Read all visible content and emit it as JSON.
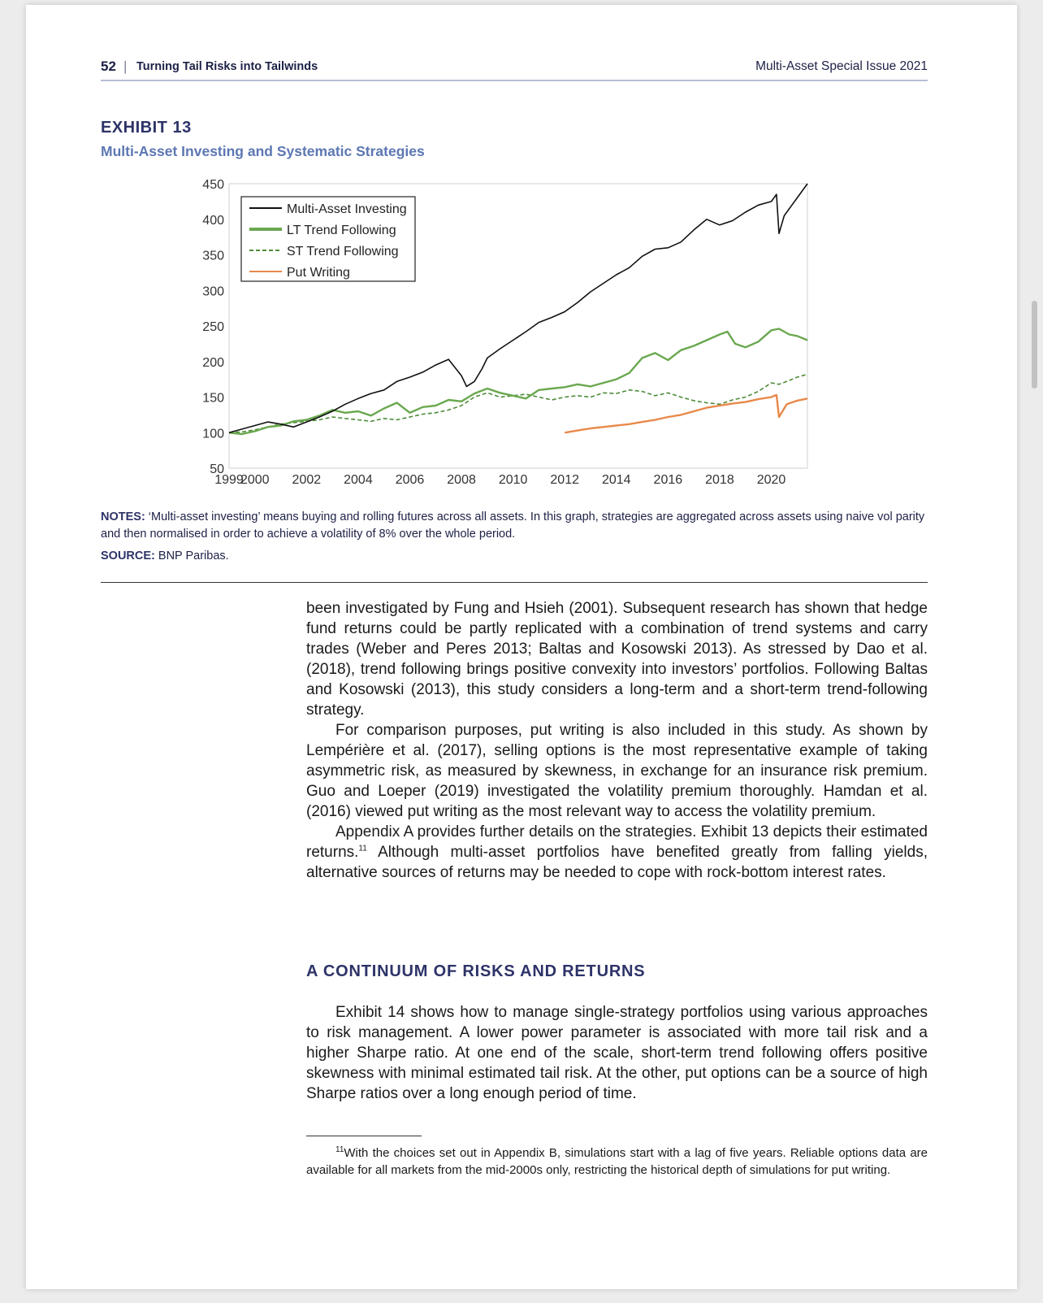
{
  "header": {
    "page_number": "52",
    "separator": "|",
    "article_title": "Turning Tail Risks into Tailwinds",
    "issue": "Multi-Asset Special Issue 2021"
  },
  "exhibit": {
    "label": "EXHIBIT 13",
    "title": "Multi-Asset Investing and Systematic Strategies",
    "notes_label": "NOTES:",
    "notes_text": " ‘Multi-asset investing’ means buying and rolling futures across all assets. In this graph, strategies are aggregated across assets using naive vol parity and then normalised in order to achieve a volatility of 8% over the whole period.",
    "source_label": "SOURCE:",
    "source_text": " BNP Paribas."
  },
  "chart_data": {
    "type": "line",
    "xlim": [
      1999,
      2021.4
    ],
    "ylim": [
      50,
      450
    ],
    "x_ticks": [
      "1999",
      "2000",
      "2002",
      "2004",
      "2006",
      "2008",
      "2010",
      "2012",
      "2014",
      "2016",
      "2018",
      "2020"
    ],
    "y_ticks": [
      "450",
      "400",
      "350",
      "300",
      "250",
      "200",
      "150",
      "100",
      "50"
    ],
    "legend_position": "top-left",
    "grid": false,
    "series": [
      {
        "name": "Multi-Asset Investing",
        "color": "#111111",
        "style": "solid",
        "x": [
          1999.0,
          1999.5,
          2000.0,
          2000.5,
          2001.0,
          2001.5,
          2002.0,
          2002.5,
          2003.0,
          2003.5,
          2004.0,
          2004.5,
          2005.0,
          2005.5,
          2006.0,
          2006.5,
          2007.0,
          2007.5,
          2008.0,
          2008.2,
          2008.5,
          2008.8,
          2009.0,
          2009.5,
          2010.0,
          2010.5,
          2011.0,
          2011.5,
          2012.0,
          2012.5,
          2013.0,
          2013.5,
          2014.0,
          2014.5,
          2015.0,
          2015.5,
          2016.0,
          2016.5,
          2017.0,
          2017.5,
          2018.0,
          2018.5,
          2019.0,
          2019.5,
          2020.0,
          2020.2,
          2020.3,
          2020.5,
          2020.8,
          2021.0,
          2021.4
        ],
        "values": [
          100,
          105,
          110,
          115,
          112,
          108,
          115,
          122,
          130,
          140,
          148,
          155,
          160,
          172,
          178,
          185,
          195,
          203,
          180,
          165,
          172,
          190,
          205,
          218,
          230,
          242,
          255,
          262,
          270,
          283,
          298,
          310,
          322,
          332,
          348,
          358,
          360,
          368,
          385,
          400,
          392,
          398,
          410,
          420,
          425,
          435,
          380,
          405,
          420,
          430,
          450
        ]
      },
      {
        "name": "LT Trend Following",
        "color": "#6aa84f",
        "style": "solid",
        "x": [
          1999.0,
          1999.5,
          2000.0,
          2000.5,
          2001.0,
          2001.5,
          2002.0,
          2002.5,
          2003.0,
          2003.5,
          2004.0,
          2004.5,
          2005.0,
          2005.5,
          2006.0,
          2006.5,
          2007.0,
          2007.5,
          2008.0,
          2008.5,
          2009.0,
          2009.5,
          2010.0,
          2010.5,
          2011.0,
          2011.5,
          2012.0,
          2012.5,
          2013.0,
          2013.5,
          2014.0,
          2014.5,
          2015.0,
          2015.5,
          2016.0,
          2016.5,
          2017.0,
          2017.5,
          2018.0,
          2018.3,
          2018.6,
          2019.0,
          2019.5,
          2020.0,
          2020.3,
          2020.7,
          2021.0,
          2021.4
        ],
        "values": [
          100,
          98,
          102,
          108,
          110,
          116,
          118,
          124,
          132,
          128,
          130,
          124,
          134,
          142,
          128,
          136,
          138,
          146,
          144,
          155,
          162,
          156,
          152,
          148,
          160,
          162,
          164,
          168,
          165,
          170,
          175,
          184,
          205,
          212,
          202,
          216,
          222,
          230,
          238,
          242,
          225,
          220,
          228,
          244,
          246,
          238,
          236,
          230
        ]
      },
      {
        "name": "ST Trend Following",
        "color": "#4e8c3a",
        "style": "dashed",
        "x": [
          1999.0,
          1999.5,
          2000.0,
          2000.5,
          2001.0,
          2001.5,
          2002.0,
          2002.5,
          2003.0,
          2003.5,
          2004.0,
          2004.5,
          2005.0,
          2005.5,
          2006.0,
          2006.5,
          2007.0,
          2007.5,
          2008.0,
          2008.5,
          2009.0,
          2009.5,
          2010.0,
          2010.5,
          2011.0,
          2011.5,
          2012.0,
          2012.5,
          2013.0,
          2013.5,
          2014.0,
          2014.5,
          2015.0,
          2015.5,
          2016.0,
          2016.5,
          2017.0,
          2017.5,
          2018.0,
          2018.5,
          2019.0,
          2019.5,
          2020.0,
          2020.3,
          2020.6,
          2021.0,
          2021.4
        ],
        "values": [
          100,
          101,
          104,
          108,
          112,
          114,
          116,
          118,
          122,
          120,
          118,
          116,
          120,
          118,
          122,
          126,
          128,
          132,
          138,
          150,
          156,
          150,
          152,
          154,
          150,
          146,
          150,
          152,
          150,
          156,
          155,
          160,
          158,
          152,
          156,
          150,
          145,
          142,
          140,
          146,
          150,
          158,
          170,
          168,
          172,
          178,
          182
        ]
      },
      {
        "name": "Put Writing",
        "color": "#e8894a",
        "style": "solid",
        "x": [
          2012.0,
          2012.5,
          2013.0,
          2013.5,
          2014.0,
          2014.5,
          2015.0,
          2015.5,
          2016.0,
          2016.5,
          2017.0,
          2017.5,
          2018.0,
          2018.5,
          2019.0,
          2019.5,
          2020.0,
          2020.2,
          2020.3,
          2020.6,
          2021.0,
          2021.4
        ],
        "values": [
          100,
          103,
          106,
          108,
          110,
          112,
          115,
          118,
          122,
          125,
          130,
          135,
          138,
          141,
          143,
          147,
          150,
          153,
          122,
          140,
          145,
          148
        ]
      }
    ]
  },
  "body": {
    "p1": "been investigated by Fung and Hsieh (2001). Subsequent research has shown that hedge fund returns could be partly replicated with a combination of trend systems and carry trades (Weber and Peres 2013; Baltas and Kosowski 2013). As stressed by Dao et al. (2018), trend following brings positive convexity into investors’ portfolios. Following Baltas and Kosowski (2013), this study considers a long-term and a short-term trend-following strategy.",
    "p2": "For comparison purposes, put writing is also included in this study. As shown by Lempérière et al. (2017), selling options is the most representative example of taking asymmetric risk, as measured by skewness, in exchange for an insurance risk premium. Guo and Loeper (2019) investigated the volatility premium thoroughly. Hamdan et al. (2016) viewed put writing as the most relevant way to access the volatility premium.",
    "p3_a": "Appendix A provides further details on the strategies. Exhibit 13 depicts their estimated returns.",
    "p3_sup": "11",
    "p3_b": " Although multi-asset portfolios have benefited greatly from falling yields, alternative sources of returns may be needed to cope with rock-bottom interest rates.",
    "section_heading": "A CONTINUUM OF RISKS AND RETURNS",
    "p4": "Exhibit 14 shows how to manage single-strategy portfolios using various approaches to risk management. A lower power parameter is associated with more tail risk and a higher Sharpe ratio. At one end of the scale, short-term trend following offers positive skewness with minimal estimated tail risk. At the other, put options can be a source of high Sharpe ratios over a long enough period of time."
  },
  "footnote": {
    "marker": "11",
    "text": "With the choices set out in Appendix B, simulations start with a lag of five years. Reliable options data are available for all markets from the mid-2000s only, restricting the historical depth of simulations for put writing."
  }
}
